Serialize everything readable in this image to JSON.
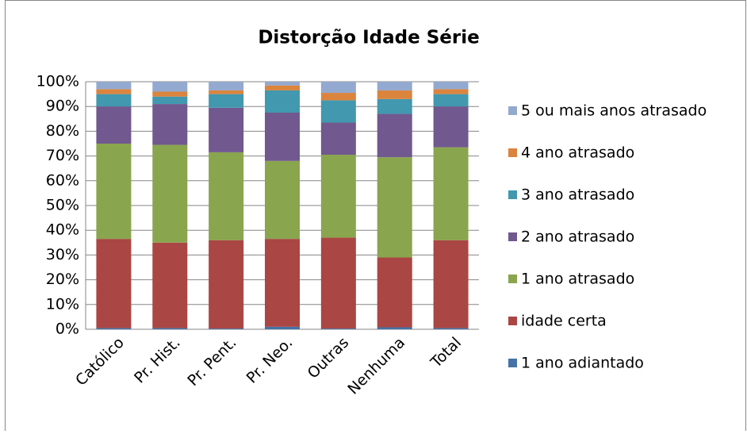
{
  "chart_data": {
    "type": "stacked_bar",
    "title": "Distorção Idade Série",
    "categories": [
      "Católico",
      "Pr. Hist.",
      "Pr. Pent.",
      "Pr. Neo.",
      "Outras",
      "Nenhuma",
      "Total"
    ],
    "series": [
      {
        "name": "1 ano adiantado",
        "color": "#4572A7",
        "values": [
          0.5,
          0.5,
          0.3,
          1,
          0.3,
          0.8,
          0.5
        ]
      },
      {
        "name": "idade certa",
        "color": "#AA4643",
        "values": [
          36,
          34.5,
          35.7,
          35.5,
          36.7,
          28.2,
          35.5
        ]
      },
      {
        "name": "1 ano atrasado",
        "color": "#89A54E",
        "values": [
          38.5,
          39.5,
          35.5,
          31.5,
          33.5,
          40.5,
          37.5
        ]
      },
      {
        "name": "2 ano atrasado",
        "color": "#71588F",
        "values": [
          15,
          16.5,
          18,
          19.5,
          13,
          17.5,
          16.5
        ]
      },
      {
        "name": "3 ano atrasado",
        "color": "#4198AF",
        "values": [
          5,
          3,
          5.5,
          9,
          9,
          6,
          5
        ]
      },
      {
        "name": "4 ano atrasado",
        "color": "#DB843D",
        "values": [
          2,
          2,
          1.5,
          2,
          3,
          3.5,
          2
        ]
      },
      {
        "name": "5 ou mais anos atrasado",
        "color": "#93A9CF",
        "values": [
          3,
          4,
          3.5,
          1.5,
          4.5,
          3.5,
          3
        ]
      }
    ],
    "ylim": [
      0,
      100
    ],
    "yticks": [
      {
        "value": 0,
        "label": "0%"
      },
      {
        "value": 10,
        "label": "10%"
      },
      {
        "value": 20,
        "label": "20%"
      },
      {
        "value": 30,
        "label": "30%"
      },
      {
        "value": 40,
        "label": "40%"
      },
      {
        "value": 50,
        "label": "50%"
      },
      {
        "value": 60,
        "label": "60%"
      },
      {
        "value": 70,
        "label": "70%"
      },
      {
        "value": 80,
        "label": "80%"
      },
      {
        "value": 90,
        "label": "90%"
      },
      {
        "value": 100,
        "label": "100%"
      }
    ],
    "grid": true,
    "legend": "right"
  }
}
